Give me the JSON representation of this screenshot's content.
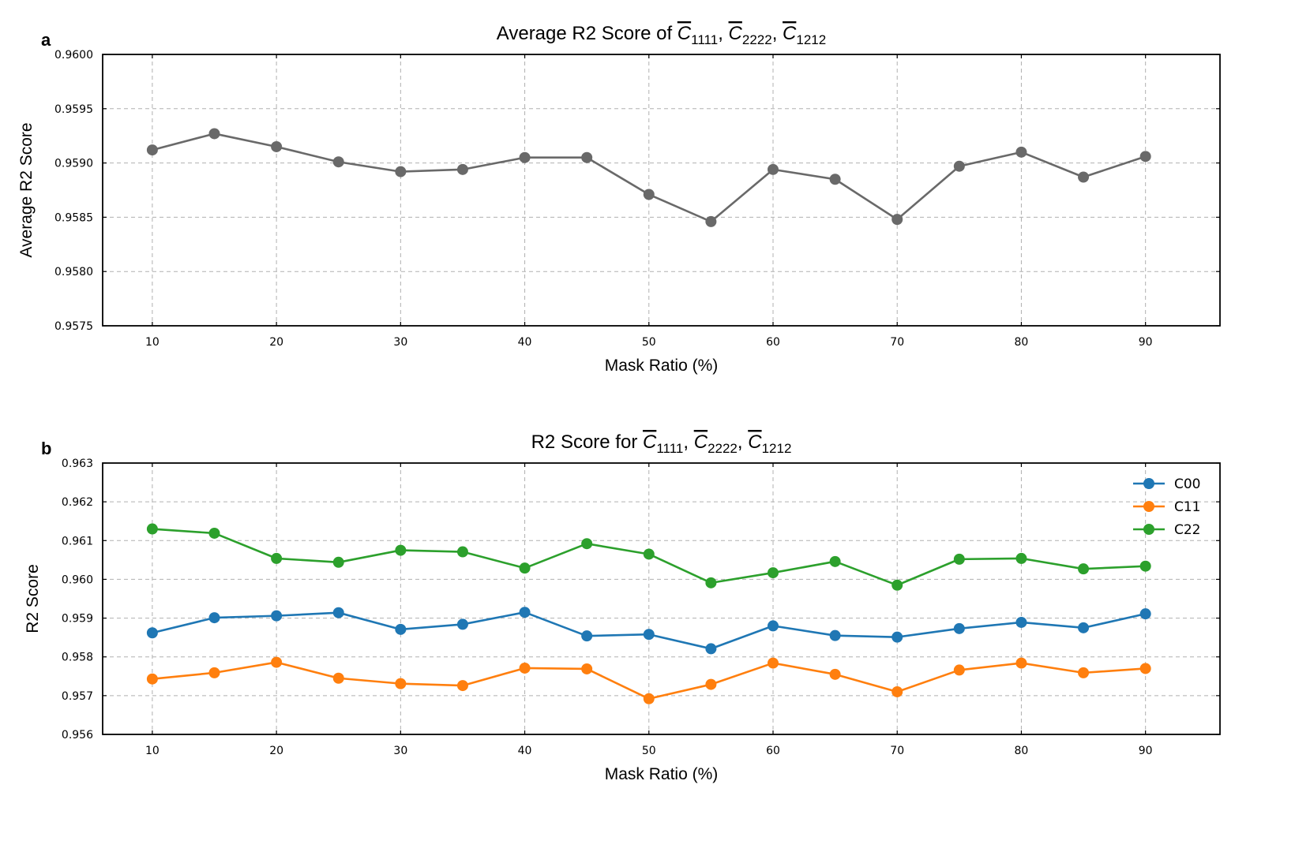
{
  "chart_data": [
    {
      "type": "line",
      "panel_label": "a",
      "title": "Average R2 Score of C̄1111, C̄2222, C̄1212",
      "title_parts": {
        "prefix": "Average R2 Score of ",
        "symbol": "C",
        "subscripts": [
          "1111",
          "2222",
          "1212"
        ],
        "separator": ", "
      },
      "xlabel": "Mask Ratio (%)",
      "ylabel": "Average R2 Score",
      "xlim": [
        6,
        96
      ],
      "ylim": [
        0.9575,
        0.96
      ],
      "xticks": [
        10,
        20,
        30,
        40,
        50,
        60,
        70,
        80,
        90
      ],
      "yticks": [
        0.9575,
        0.958,
        0.9585,
        0.959,
        0.9595,
        0.96
      ],
      "ytick_labels": [
        "0.9575",
        "0.9580",
        "0.9585",
        "0.9590",
        "0.9595",
        "0.9600"
      ],
      "grid": true,
      "x": [
        10,
        15,
        20,
        25,
        30,
        35,
        40,
        45,
        50,
        55,
        60,
        65,
        70,
        75,
        80,
        85,
        90
      ],
      "series": [
        {
          "color": "#696969",
          "values": [
            0.95912,
            0.95927,
            0.95915,
            0.95901,
            0.95892,
            0.95894,
            0.95905,
            0.95905,
            0.95871,
            0.95846,
            0.95894,
            0.95885,
            0.95848,
            0.95897,
            0.9591,
            0.95887,
            0.95906
          ]
        }
      ]
    },
    {
      "type": "line",
      "panel_label": "b",
      "title": "R2 Score for C̄1111, C̄2222, C̄1212",
      "title_parts": {
        "prefix": "R2 Score for ",
        "symbol": "C",
        "subscripts": [
          "1111",
          "2222",
          "1212"
        ],
        "separator": ", "
      },
      "xlabel": "Mask Ratio (%)",
      "ylabel": "R2 Score",
      "xlim": [
        6,
        96
      ],
      "ylim": [
        0.956,
        0.963
      ],
      "xticks": [
        10,
        20,
        30,
        40,
        50,
        60,
        70,
        80,
        90
      ],
      "yticks": [
        0.956,
        0.957,
        0.958,
        0.959,
        0.96,
        0.961,
        0.962,
        0.963
      ],
      "ytick_labels": [
        "0.956",
        "0.957",
        "0.958",
        "0.959",
        "0.960",
        "0.961",
        "0.962",
        "0.963"
      ],
      "grid": true,
      "legend": "top-right",
      "x": [
        10,
        15,
        20,
        25,
        30,
        35,
        40,
        45,
        50,
        55,
        60,
        65,
        70,
        75,
        80,
        85,
        90
      ],
      "series": [
        {
          "name": "C00",
          "color": "#1f77b4",
          "values": [
            0.95862,
            0.95901,
            0.95906,
            0.95914,
            0.95871,
            0.95884,
            0.95915,
            0.95854,
            0.95858,
            0.95821,
            0.9588,
            0.95855,
            0.95851,
            0.95873,
            0.95889,
            0.95875,
            0.95911
          ]
        },
        {
          "name": "C11",
          "color": "#ff7f0e",
          "values": [
            0.95743,
            0.95759,
            0.95786,
            0.95745,
            0.95731,
            0.95726,
            0.95771,
            0.95769,
            0.95692,
            0.95729,
            0.95784,
            0.95755,
            0.9571,
            0.95766,
            0.95784,
            0.95759,
            0.9577
          ]
        },
        {
          "name": "C22",
          "color": "#2ca02c",
          "values": [
            0.9613,
            0.96119,
            0.96054,
            0.96044,
            0.96075,
            0.96071,
            0.96029,
            0.96092,
            0.96065,
            0.95991,
            0.96017,
            0.96046,
            0.95985,
            0.96052,
            0.96054,
            0.96027,
            0.96034
          ]
        }
      ]
    }
  ]
}
